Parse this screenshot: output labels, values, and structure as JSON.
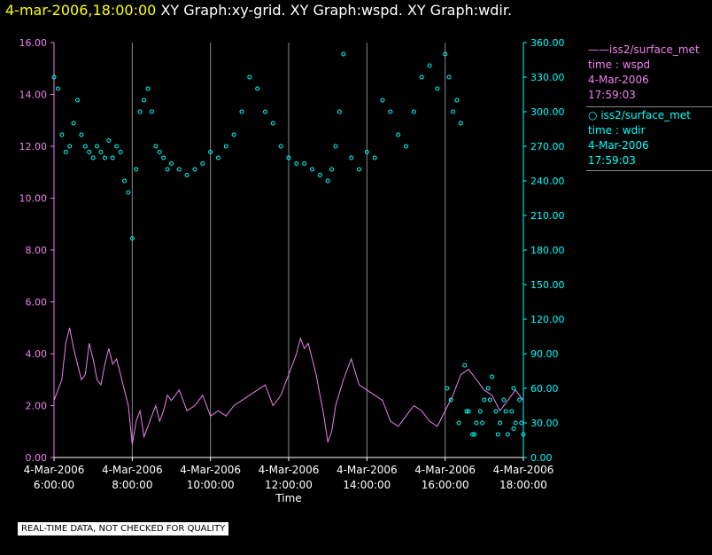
{
  "header": {
    "timestamp": "4-mar-2006,18:00:00",
    "graphs": "XY Graph:xy-grid.  XY Graph:wspd.  XY Graph:wdir."
  },
  "legend": {
    "series1": {
      "marker": "——",
      "source": "iss2/surface_met",
      "line2": "time : wspd",
      "line3": "4-Mar-2006",
      "line4": "17:59:03"
    },
    "series2": {
      "marker": "○",
      "source": "iss2/surface_met",
      "line2": "time : wdir",
      "line3": "4-Mar-2006",
      "line4": "17:59:03"
    }
  },
  "disclaimer": "REAL-TIME DATA, NOT CHECKED FOR QUALITY",
  "colors": {
    "wspd": "#ee82ee",
    "wdir": "#00ffff",
    "title": "#ffff00",
    "grid": "#888888"
  },
  "chart_data": {
    "type": "line",
    "xlabel": "Time",
    "x_range": [
      6.0,
      18.0
    ],
    "x_ticks": [
      {
        "x": 6,
        "date": "4-Mar-2006",
        "time": "6:00:00"
      },
      {
        "x": 8,
        "date": "4-Mar-2006",
        "time": "8:00:00"
      },
      {
        "x": 10,
        "date": "4-Mar-2006",
        "time": "10:00:00"
      },
      {
        "x": 12,
        "date": "4-Mar-2006",
        "time": "12:00:00"
      },
      {
        "x": 14,
        "date": "4-Mar-2006",
        "time": "14:00:00"
      },
      {
        "x": 16,
        "date": "4-Mar-2006",
        "time": "16:00:00"
      },
      {
        "x": 18,
        "date": "4-Mar-2006",
        "time": "18:00:00"
      }
    ],
    "y_left": {
      "label": "wspd",
      "range": [
        0,
        16
      ],
      "ticks": [
        "0.00",
        "2.00",
        "4.00",
        "6.00",
        "8.00",
        "10.00",
        "12.00",
        "14.00",
        "16.00"
      ]
    },
    "y_right": {
      "label": "wdir",
      "range": [
        0,
        360
      ],
      "ticks": [
        "0.00",
        "30.00",
        "60.00",
        "90.00",
        "120.00",
        "150.00",
        "180.00",
        "210.00",
        "240.00",
        "270.00",
        "300.00",
        "330.00",
        "360.00"
      ]
    },
    "series": [
      {
        "name": "wspd",
        "style": "line",
        "axis": "left",
        "x": [
          6.0,
          6.1,
          6.2,
          6.3,
          6.4,
          6.5,
          6.6,
          6.7,
          6.8,
          6.9,
          7.0,
          7.1,
          7.2,
          7.3,
          7.4,
          7.5,
          7.6,
          7.7,
          7.8,
          7.9,
          8.0,
          8.1,
          8.2,
          8.3,
          8.4,
          8.5,
          8.6,
          8.7,
          8.8,
          8.9,
          9.0,
          9.2,
          9.4,
          9.6,
          9.8,
          10.0,
          10.2,
          10.4,
          10.6,
          10.8,
          11.0,
          11.2,
          11.4,
          11.6,
          11.8,
          12.0,
          12.2,
          12.3,
          12.4,
          12.5,
          12.6,
          12.7,
          12.8,
          12.9,
          13.0,
          13.1,
          13.2,
          13.4,
          13.6,
          13.8,
          14.0,
          14.2,
          14.4,
          14.6,
          14.8,
          15.0,
          15.2,
          15.4,
          15.6,
          15.8,
          16.0,
          16.2,
          16.4,
          16.6,
          16.8,
          17.0,
          17.2,
          17.4,
          17.6,
          17.8,
          18.0
        ],
        "y": [
          2.2,
          2.6,
          3.0,
          4.4,
          5.0,
          4.2,
          3.6,
          3.0,
          3.2,
          4.4,
          3.8,
          3.0,
          2.8,
          3.6,
          4.2,
          3.6,
          3.8,
          3.2,
          2.6,
          2.0,
          0.5,
          1.4,
          1.8,
          0.8,
          1.2,
          1.6,
          2.0,
          1.4,
          1.8,
          2.4,
          2.2,
          2.6,
          1.8,
          2.0,
          2.4,
          1.6,
          1.8,
          1.6,
          2.0,
          2.2,
          2.4,
          2.6,
          2.8,
          2.0,
          2.4,
          3.2,
          4.0,
          4.6,
          4.2,
          4.4,
          3.8,
          3.2,
          2.4,
          1.6,
          0.6,
          1.0,
          2.0,
          3.0,
          3.8,
          2.8,
          2.6,
          2.4,
          2.2,
          1.4,
          1.2,
          1.6,
          2.0,
          1.8,
          1.4,
          1.2,
          1.8,
          2.4,
          3.2,
          3.4,
          3.0,
          2.6,
          2.4,
          1.8,
          2.2,
          2.6,
          2.2
        ]
      },
      {
        "name": "wdir",
        "style": "scatter",
        "axis": "right",
        "x": [
          6.0,
          6.1,
          6.2,
          6.3,
          6.4,
          6.5,
          6.6,
          6.7,
          6.8,
          6.9,
          7.0,
          7.1,
          7.2,
          7.3,
          7.4,
          7.5,
          7.6,
          7.7,
          7.8,
          7.9,
          8.0,
          8.1,
          8.2,
          8.3,
          8.4,
          8.5,
          8.6,
          8.7,
          8.8,
          8.9,
          9.0,
          9.2,
          9.4,
          9.6,
          9.8,
          10.0,
          10.2,
          10.4,
          10.6,
          10.8,
          11.0,
          11.2,
          11.4,
          11.6,
          11.8,
          12.0,
          12.2,
          12.4,
          12.6,
          12.8,
          13.0,
          13.1,
          13.2,
          13.3,
          13.4,
          13.6,
          13.8,
          14.0,
          14.2,
          14.4,
          14.6,
          14.8,
          15.0,
          15.2,
          15.4,
          15.6,
          15.8,
          16.0,
          16.1,
          16.2,
          16.3,
          16.4,
          16.5,
          16.6,
          16.7,
          16.8,
          16.9,
          17.0,
          17.1,
          17.2,
          17.3,
          17.4,
          17.5,
          17.6,
          17.7,
          17.8,
          17.9,
          18.0,
          16.05,
          16.15,
          16.35,
          16.55,
          16.75,
          16.95,
          17.15,
          17.35,
          17.55,
          17.75,
          17.95,
          17.75
        ],
        "y": [
          330,
          320,
          280,
          265,
          270,
          290,
          310,
          280,
          270,
          265,
          260,
          270,
          265,
          260,
          275,
          260,
          270,
          265,
          240,
          230,
          190,
          250,
          300,
          310,
          320,
          300,
          270,
          265,
          260,
          250,
          255,
          250,
          245,
          250,
          255,
          265,
          260,
          270,
          280,
          300,
          330,
          320,
          300,
          290,
          270,
          260,
          255,
          255,
          250,
          245,
          240,
          250,
          270,
          300,
          350,
          260,
          250,
          265,
          260,
          310,
          300,
          280,
          270,
          300,
          330,
          340,
          320,
          350,
          330,
          300,
          310,
          290,
          80,
          40,
          20,
          30,
          40,
          50,
          60,
          70,
          40,
          30,
          50,
          20,
          40,
          30,
          50,
          20,
          60,
          50,
          30,
          40,
          20,
          30,
          50,
          20,
          40,
          60,
          30,
          25
        ]
      }
    ]
  }
}
